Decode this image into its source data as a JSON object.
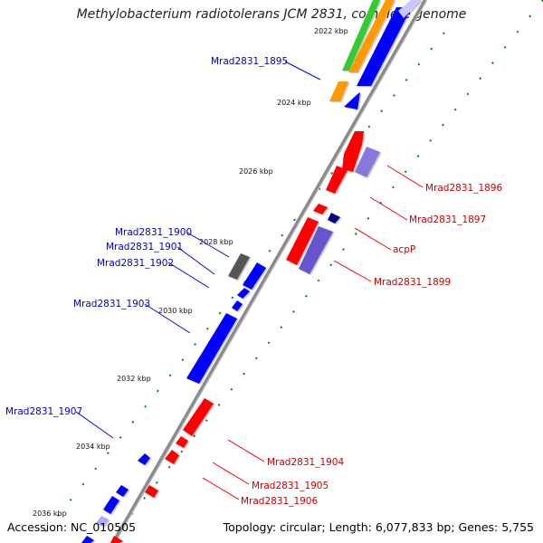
{
  "title": "Methylobacterium radiotolerans JCM 2831, complete genome",
  "accession": "Accession: NC_010505",
  "topology": "Topology: circular; Length: 6,077,833 bp; Genes: 5,755",
  "colors": {
    "forward": "#0000ff",
    "reverse": "#ff0000",
    "green": "#33cc33",
    "orange": "#ff9900",
    "lavender": "#8877dd",
    "navy": "#000088",
    "gray": "#666666",
    "backbone": "#777777",
    "dash": "#008800"
  },
  "tick_labels": [
    "2022 kbp",
    "2024 kbp",
    "2026 kbp",
    "2028 kbp",
    "2030 kbp",
    "2032 kbp",
    "2034 kbp",
    "2036 kbp"
  ],
  "gene_labels_blue": [
    "Mrad2831_1895",
    "Mrad2831_1900",
    "Mrad2831_1901",
    "Mrad2831_1902",
    "Mrad2831_1903",
    "Mrad2831_1907"
  ],
  "gene_labels_red": [
    "Mrad2831_1896",
    "Mrad2831_1897",
    "acpP",
    "Mrad2831_1899",
    "Mrad2831_1904",
    "Mrad2831_1905",
    "Mrad2831_1906"
  ]
}
